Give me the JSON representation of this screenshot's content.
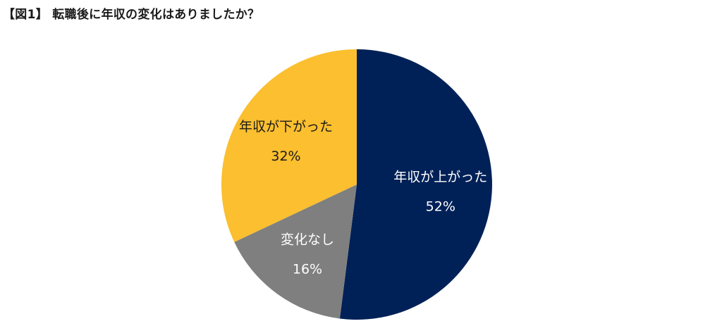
{
  "chart_data": {
    "type": "pie",
    "title": "【図1】 転職後に年収の変化はありましたか？",
    "slices": [
      {
        "label": "年収が上がった",
        "value": 52,
        "value_label": "52%",
        "color": "#002157",
        "text_color": "#ffffff"
      },
      {
        "label": "変化なし",
        "value": 16,
        "value_label": "16%",
        "color": "#7f7f7f",
        "text_color": "#ffffff"
      },
      {
        "label": "年収が下がった",
        "value": 32,
        "value_label": "32%",
        "color": "#fbbf2f",
        "text_color": "#1a1a1a"
      }
    ],
    "start": "12 o'clock",
    "direction": "clockwise",
    "legend": "none"
  }
}
